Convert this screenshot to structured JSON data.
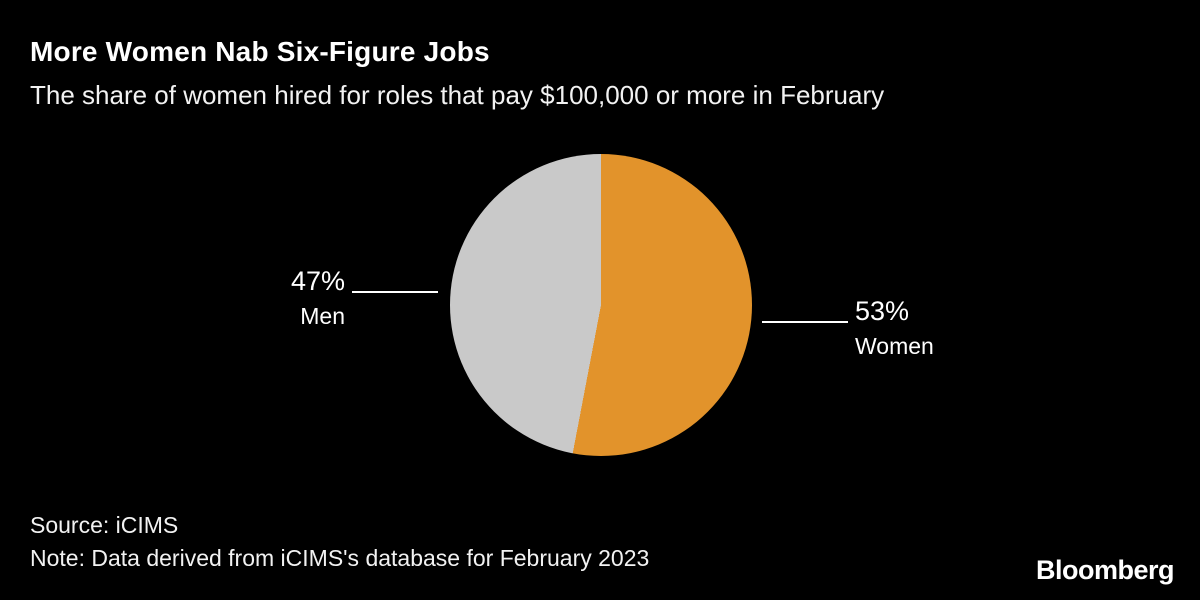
{
  "header": {
    "title": "More Women Nab Six-Figure Jobs",
    "subtitle": "The share of women hired for roles that pay $100,000 or more in February"
  },
  "chart_data": {
    "type": "pie",
    "title": "More Women Nab Six-Figure Jobs",
    "subtitle": "The share of women hired for roles that pay $100,000 or more in February",
    "start_angle_deg": 0,
    "direction": "clockwise",
    "slices": [
      {
        "label": "Women",
        "value": 53,
        "display": "53%",
        "color": "#E2932B"
      },
      {
        "label": "Men",
        "value": 47,
        "display": "47%",
        "color": "#C9C9C9"
      }
    ],
    "legend_position": "callout-labels",
    "grid": false
  },
  "callouts": {
    "men": {
      "percent": "47%",
      "label": "Men"
    },
    "women": {
      "percent": "53%",
      "label": "Women"
    }
  },
  "footer": {
    "source": "Source: iCIMS",
    "note": "Note: Data derived from iCIMS's database for February 2023",
    "brand": "Bloomberg"
  },
  "colors": {
    "background": "#000000",
    "text": "#FFFFFF",
    "women_slice": "#E2932B",
    "men_slice": "#C9C9C9"
  }
}
